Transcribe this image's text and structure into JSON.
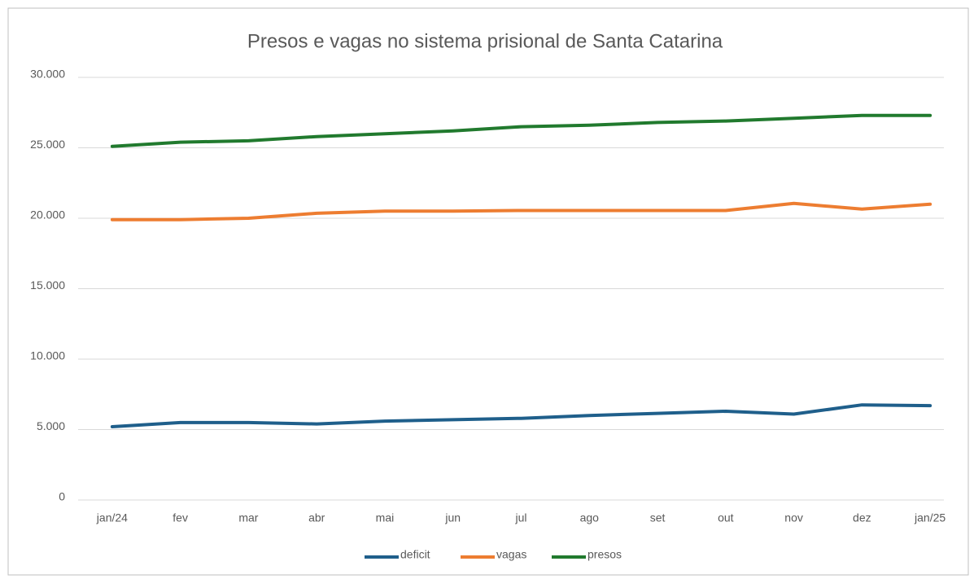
{
  "chart_data": {
    "type": "line",
    "title": "Presos e vagas no sistema prisional de Santa Catarina",
    "categories": [
      "jan/24",
      "fev",
      "mar",
      "abr",
      "mai",
      "jun",
      "jul",
      "ago",
      "set",
      "out",
      "nov",
      "dez",
      "jan/25"
    ],
    "series": [
      {
        "name": "deficit",
        "color": "#1f5f8b",
        "values": [
          5200,
          5500,
          5500,
          5400,
          5600,
          5700,
          5800,
          6000,
          6150,
          6300,
          6100,
          6750,
          6700
        ]
      },
      {
        "name": "vagas",
        "color": "#ed7d31",
        "values": [
          19900,
          19900,
          20000,
          20350,
          20500,
          20500,
          20550,
          20550,
          20550,
          20550,
          21050,
          20650,
          21000
        ]
      },
      {
        "name": "presos",
        "color": "#217a2e",
        "values": [
          25100,
          25400,
          25500,
          25800,
          26000,
          26200,
          26500,
          26600,
          26800,
          26900,
          27100,
          27300,
          27300
        ]
      }
    ],
    "ylim": [
      0,
      30000
    ],
    "yticks": [
      0,
      {
        "value": 5000,
        "label": "5.000"
      },
      {
        "value": 10000,
        "label": "10.000"
      },
      {
        "value": 15000,
        "label": "15.000"
      },
      {
        "value": 20000,
        "label": "20.000"
      },
      {
        "value": 25000,
        "label": "25.000"
      },
      {
        "value": 30000,
        "label": "30.000"
      }
    ],
    "grid": true,
    "legend": "bottom"
  }
}
